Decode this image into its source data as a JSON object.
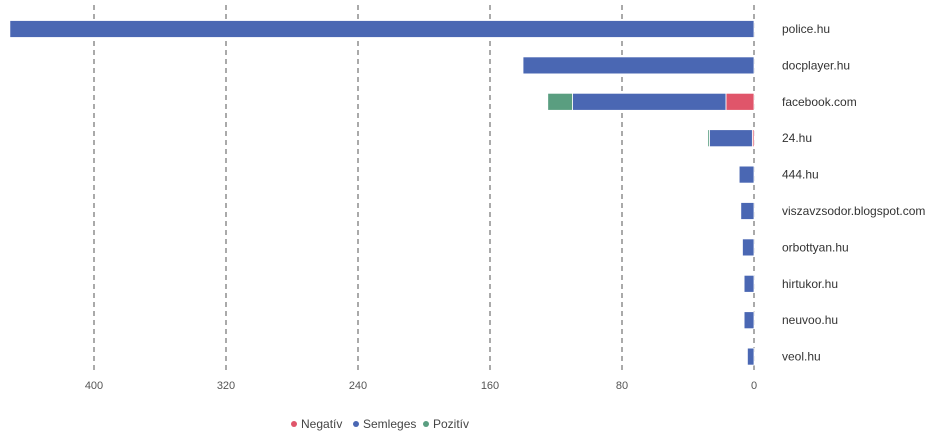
{
  "chart_data": {
    "type": "bar",
    "orientation": "horizontal",
    "x_direction": "reversed",
    "stacked": true,
    "categories": [
      "police.hu",
      "docplayer.hu",
      "facebook.com",
      "24.hu",
      "444.hu",
      "viszavzsodor.blogspot.com",
      "orbottyan.hu",
      "hirtukor.hu",
      "neuvoo.hu",
      "veol.hu"
    ],
    "series": [
      {
        "name": "Negatív",
        "color": "#e0556a",
        "values": [
          0,
          0,
          17,
          1,
          0,
          0,
          0,
          0,
          0,
          0
        ]
      },
      {
        "name": "Semleges",
        "color": "#4a67b3",
        "values": [
          451,
          140,
          93,
          26,
          9,
          8,
          7,
          6,
          6,
          4
        ]
      },
      {
        "name": "Pozitív",
        "color": "#5a9e80",
        "values": [
          0,
          0,
          15,
          1,
          0,
          0,
          0,
          0,
          0,
          0
        ]
      }
    ],
    "x_ticks": [
      "400",
      "320",
      "240",
      "160",
      "80",
      "0"
    ],
    "xlim": [
      0,
      456
    ],
    "grid": "vertical dashed",
    "legend_position": "bottom-center"
  }
}
